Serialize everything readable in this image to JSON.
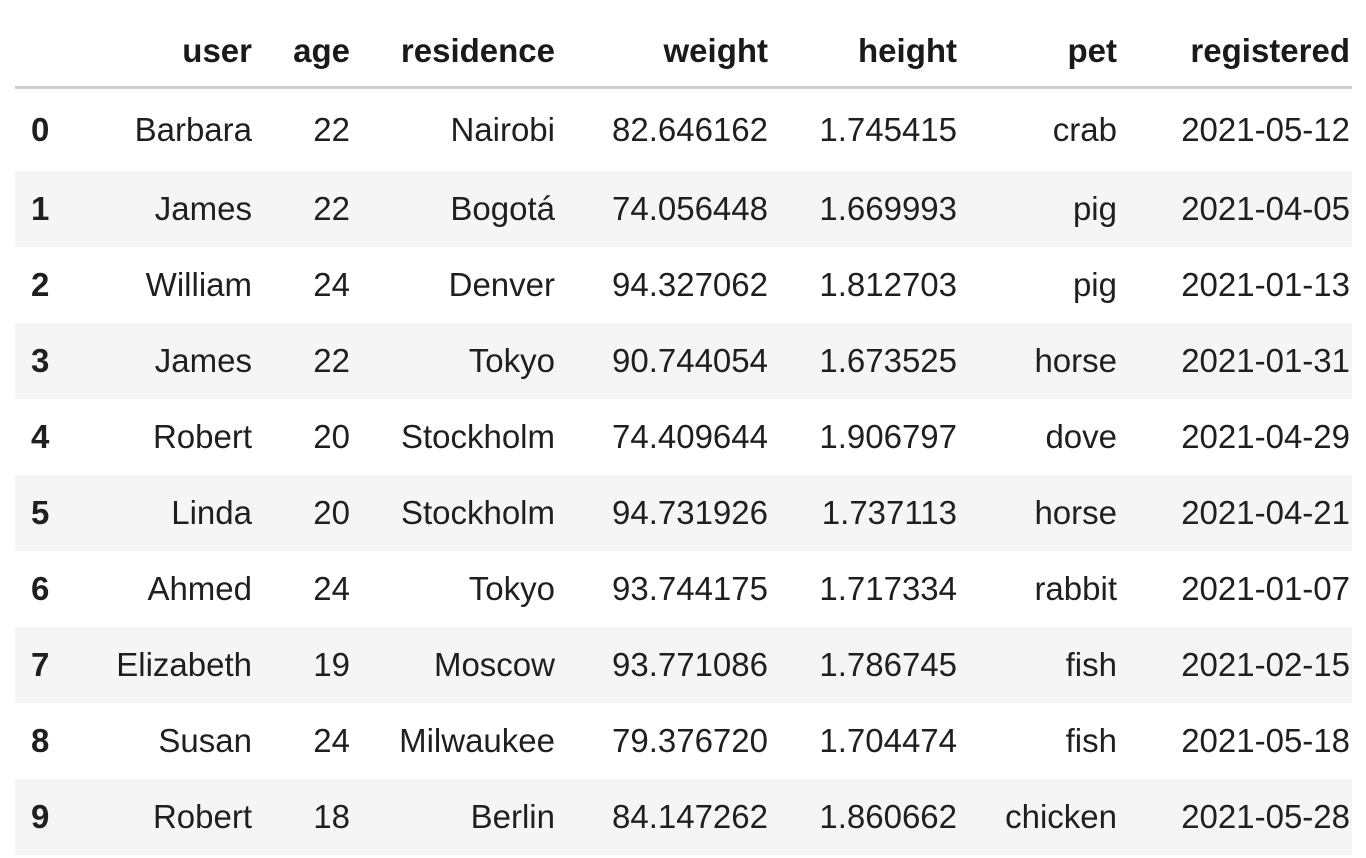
{
  "table": {
    "columns": [
      "",
      "user",
      "age",
      "residence",
      "weight",
      "height",
      "pet",
      "registered"
    ],
    "rows": [
      {
        "index": "0",
        "user": "Barbara",
        "age": "22",
        "residence": "Nairobi",
        "weight": "82.646162",
        "height": "1.745415",
        "pet": "crab",
        "registered": "2021-05-12"
      },
      {
        "index": "1",
        "user": "James",
        "age": "22",
        "residence": "Bogotá",
        "weight": "74.056448",
        "height": "1.669993",
        "pet": "pig",
        "registered": "2021-04-05"
      },
      {
        "index": "2",
        "user": "William",
        "age": "24",
        "residence": "Denver",
        "weight": "94.327062",
        "height": "1.812703",
        "pet": "pig",
        "registered": "2021-01-13"
      },
      {
        "index": "3",
        "user": "James",
        "age": "22",
        "residence": "Tokyo",
        "weight": "90.744054",
        "height": "1.673525",
        "pet": "horse",
        "registered": "2021-01-31"
      },
      {
        "index": "4",
        "user": "Robert",
        "age": "20",
        "residence": "Stockholm",
        "weight": "74.409644",
        "height": "1.906797",
        "pet": "dove",
        "registered": "2021-04-29"
      },
      {
        "index": "5",
        "user": "Linda",
        "age": "20",
        "residence": "Stockholm",
        "weight": "94.731926",
        "height": "1.737113",
        "pet": "horse",
        "registered": "2021-04-21"
      },
      {
        "index": "6",
        "user": "Ahmed",
        "age": "24",
        "residence": "Tokyo",
        "weight": "93.744175",
        "height": "1.717334",
        "pet": "rabbit",
        "registered": "2021-01-07"
      },
      {
        "index": "7",
        "user": "Elizabeth",
        "age": "19",
        "residence": "Moscow",
        "weight": "93.771086",
        "height": "1.786745",
        "pet": "fish",
        "registered": "2021-02-15"
      },
      {
        "index": "8",
        "user": "Susan",
        "age": "24",
        "residence": "Milwaukee",
        "weight": "79.376720",
        "height": "1.704474",
        "pet": "fish",
        "registered": "2021-05-18"
      },
      {
        "index": "9",
        "user": "Robert",
        "age": "18",
        "residence": "Berlin",
        "weight": "84.147262",
        "height": "1.860662",
        "pet": "chicken",
        "registered": "2021-05-28"
      }
    ]
  },
  "colors": {
    "header_rule": "#cfcfcf",
    "stripe": "#f5f5f5",
    "text": "#1f1f1f"
  }
}
